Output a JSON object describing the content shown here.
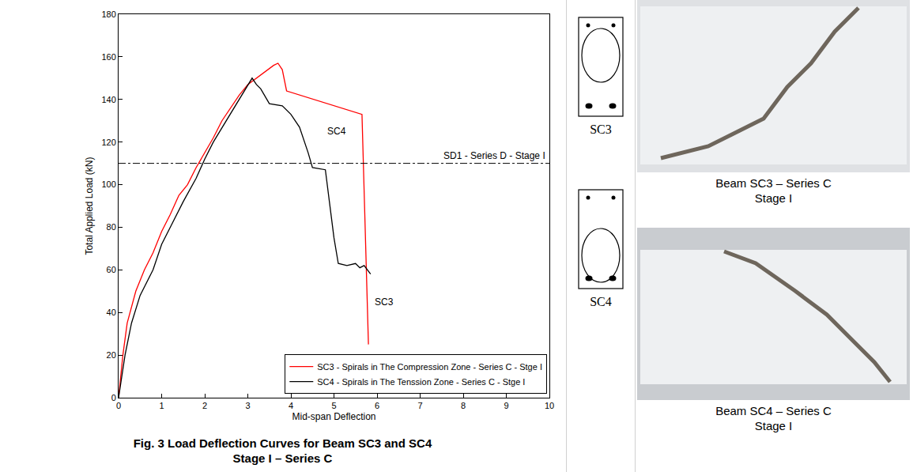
{
  "chart_data": {
    "type": "line",
    "x_title": "Mid-span Deflection",
    "y_title": "Total Applied Load (kN)",
    "xlim": [
      0,
      10
    ],
    "xticks": [
      0,
      1,
      2,
      3,
      4,
      5,
      6,
      7,
      8,
      9,
      10
    ],
    "ylim": [
      0,
      180
    ],
    "yticks": [
      0,
      20,
      40,
      60,
      80,
      100,
      120,
      140,
      160,
      180
    ],
    "grid": false,
    "legend": "lower right",
    "series": [
      {
        "name": "SC3 - Spirals in The Compression Zone - Series C - Stge I",
        "color": "#ff0000",
        "x": [
          0,
          0.1,
          0.2,
          0.4,
          0.6,
          0.8,
          1.0,
          1.2,
          1.4,
          1.6,
          1.8,
          2.0,
          2.2,
          2.4,
          2.6,
          2.8,
          3.0,
          3.2,
          3.4,
          3.6,
          3.7,
          3.8,
          3.9,
          5.65,
          5.8
        ],
        "values": [
          0,
          20,
          35,
          50,
          60,
          68,
          78,
          86,
          95,
          100,
          108,
          115,
          122,
          130,
          136,
          142,
          147,
          150,
          153,
          156,
          157,
          154,
          144,
          133,
          25
        ]
      },
      {
        "name": "SC4 - Spirals in The Tenssion Zone - Series C - Stge I",
        "color": "#000000",
        "x": [
          0,
          0.15,
          0.3,
          0.5,
          0.8,
          1.0,
          1.2,
          1.5,
          1.8,
          2.0,
          2.2,
          2.5,
          2.8,
          3.0,
          3.1,
          3.2,
          3.3,
          3.5,
          3.8,
          4.0,
          4.2,
          4.4,
          4.5,
          4.8,
          4.9,
          5.0,
          5.1,
          5.3,
          5.5,
          5.6,
          5.7,
          5.85
        ],
        "values": [
          0,
          20,
          35,
          48,
          60,
          72,
          80,
          92,
          103,
          112,
          120,
          130,
          140,
          147,
          150,
          147,
          145,
          138,
          137,
          133,
          127,
          115,
          108,
          107,
          90,
          75,
          63,
          62,
          63,
          61,
          62,
          58
        ]
      }
    ],
    "annotations": [
      {
        "text": "SD1 - Series D - Stage I",
        "y": 110,
        "line_style": "dash"
      },
      {
        "text": "SC4",
        "x": 4.8,
        "y": 125
      },
      {
        "text": "SC3",
        "x": 5.9,
        "y": 45
      }
    ]
  },
  "caption": [
    "Fig. 3 Load Deflection Curves for Beam SC3 and SC4",
    "Stage I – Series C"
  ],
  "sections": [
    {
      "label": "SC3"
    },
    {
      "label": "SC4"
    }
  ],
  "photos": [
    {
      "caption": [
        "Beam SC3 – Series C",
        "Stage I"
      ]
    },
    {
      "caption": [
        "Beam SC4 – Series C",
        "Stage I"
      ]
    }
  ]
}
